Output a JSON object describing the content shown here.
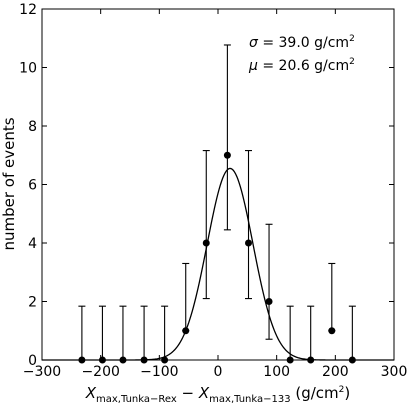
{
  "chart_data": {
    "type": "scatter",
    "title": "",
    "xlabel": "X_max,Tunka−Rex − X_max,Tunka−133 (g/cm²)",
    "xlabel_parts": {
      "x1": "X",
      "sub1": "max,Tunka−Rex",
      "minus": " − ",
      "x2": "X",
      "sub2": "max,Tunka−133",
      "unit_open": " (g/cm",
      "unit_sup": "2",
      "unit_close": ")"
    },
    "ylabel": "number of events",
    "xlim": [
      -300,
      300
    ],
    "ylim": [
      0,
      12
    ],
    "xticks": [
      -300,
      -200,
      -100,
      0,
      100,
      200,
      300
    ],
    "yticks": [
      0,
      2,
      4,
      6,
      8,
      10,
      12
    ],
    "grid": false,
    "annotations": [
      {
        "id": "sigma",
        "symbol": "σ",
        "text": " = 39.0 g/cm",
        "sup": "2"
      },
      {
        "id": "mu",
        "symbol": "μ",
        "text": " = 20.6 g/cm",
        "sup": "2"
      }
    ],
    "points": [
      {
        "x": -232,
        "y": 0,
        "err_low": 0,
        "err_high": 1.84
      },
      {
        "x": -197,
        "y": 0,
        "err_low": 0,
        "err_high": 1.84
      },
      {
        "x": -162,
        "y": 0,
        "err_low": 0,
        "err_high": 1.84
      },
      {
        "x": -126,
        "y": 0,
        "err_low": 0,
        "err_high": 1.84
      },
      {
        "x": -91,
        "y": 0,
        "err_low": 0,
        "err_high": 1.84
      },
      {
        "x": -55,
        "y": 1,
        "err_low": 1,
        "err_high": 3.3
      },
      {
        "x": -20,
        "y": 4,
        "err_low": 2.1,
        "err_high": 7.16
      },
      {
        "x": 16,
        "y": 7,
        "err_low": 4.45,
        "err_high": 10.77
      },
      {
        "x": 52,
        "y": 4,
        "err_low": 2.1,
        "err_high": 7.16
      },
      {
        "x": 87,
        "y": 2,
        "err_low": 0.71,
        "err_high": 4.64
      },
      {
        "x": 123,
        "y": 0,
        "err_low": 0,
        "err_high": 1.84
      },
      {
        "x": 158,
        "y": 0,
        "err_low": 0,
        "err_high": 1.84
      },
      {
        "x": 194,
        "y": 1,
        "err_low": 1,
        "err_high": 3.3
      },
      {
        "x": 229,
        "y": 0,
        "err_low": 0,
        "err_high": 1.84
      }
    ],
    "fit": {
      "type": "gaussian",
      "mu": 20.6,
      "sigma": 39.0,
      "amplitude": 6.55
    }
  }
}
